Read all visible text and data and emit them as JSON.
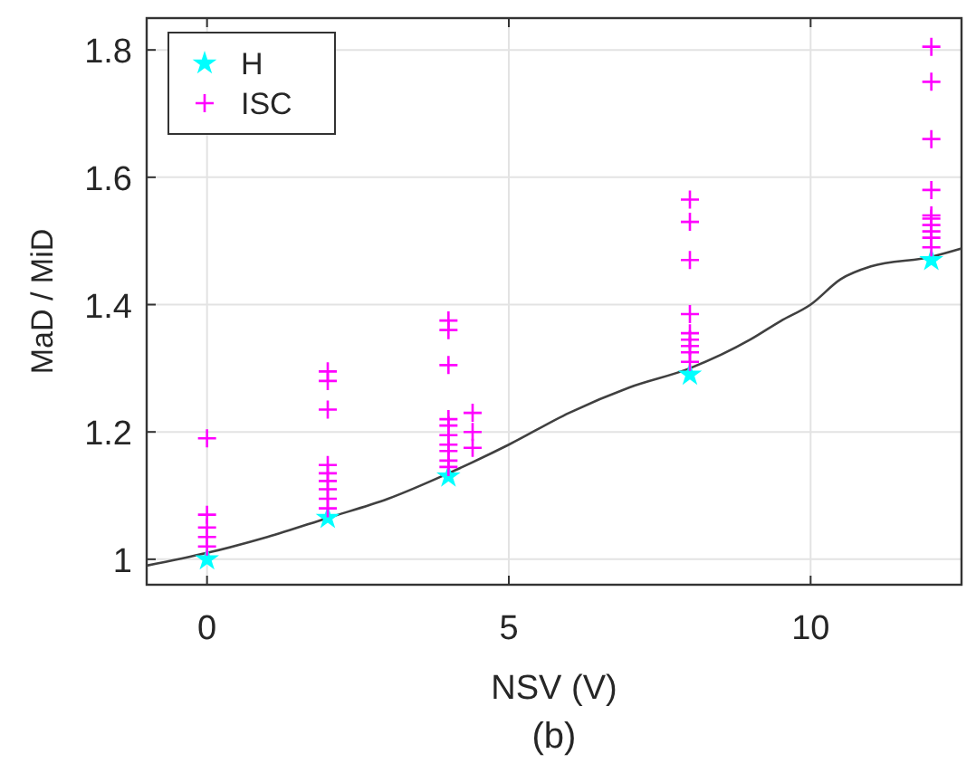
{
  "chart_data": {
    "type": "scatter",
    "xlabel": "NSV (V)",
    "ylabel": "MaD / MiD",
    "annotations": [
      "(b)"
    ],
    "xlim": [
      -1,
      12.5
    ],
    "ylim": [
      0.96,
      1.85
    ],
    "xticks": [
      0,
      5,
      10
    ],
    "yticks": [
      1,
      1.2,
      1.4,
      1.6,
      1.8
    ],
    "grid": true,
    "legend": "top left",
    "series": [
      {
        "type": "line",
        "color": "#404040",
        "marker": "none",
        "line_style": "solid",
        "x": [
          -1,
          0,
          1,
          2,
          3,
          4,
          5,
          6,
          7,
          8,
          9,
          9.5,
          10,
          10.5,
          11,
          12,
          12.5
        ],
        "values": [
          0.99,
          1.01,
          1.035,
          1.065,
          1.095,
          1.135,
          1.18,
          1.23,
          1.27,
          1.3,
          1.345,
          1.374,
          1.4,
          1.44,
          1.46,
          1.475,
          1.488
        ]
      },
      {
        "name": "H",
        "color": "#00ffff",
        "marker": "star",
        "x": [
          0,
          2,
          4,
          8,
          12
        ],
        "values": [
          1.0,
          1.065,
          1.13,
          1.29,
          1.47
        ]
      },
      {
        "name": "ISC",
        "color": "#ff00ff",
        "marker": "cross",
        "x": [
          0,
          0,
          0,
          0,
          0,
          2,
          2,
          2,
          2,
          2,
          2,
          2,
          2,
          2,
          4,
          4,
          4,
          4,
          4,
          4,
          4,
          4,
          4,
          4,
          4.4,
          4.4,
          4.4,
          8,
          8,
          8,
          8,
          8,
          8,
          8,
          8,
          8,
          12,
          12,
          12,
          12,
          12,
          12,
          12,
          12,
          12,
          12
        ],
        "values": [
          1.19,
          1.07,
          1.05,
          1.035,
          1.02,
          1.295,
          1.28,
          1.235,
          1.148,
          1.135,
          1.123,
          1.11,
          1.095,
          1.08,
          1.375,
          1.36,
          1.305,
          1.22,
          1.21,
          1.195,
          1.18,
          1.17,
          1.155,
          1.145,
          1.23,
          1.2,
          1.175,
          1.565,
          1.53,
          1.47,
          1.385,
          1.355,
          1.345,
          1.335,
          1.325,
          1.31,
          1.805,
          1.75,
          1.66,
          1.58,
          1.54,
          1.535,
          1.525,
          1.515,
          1.505,
          1.49
        ]
      }
    ]
  }
}
